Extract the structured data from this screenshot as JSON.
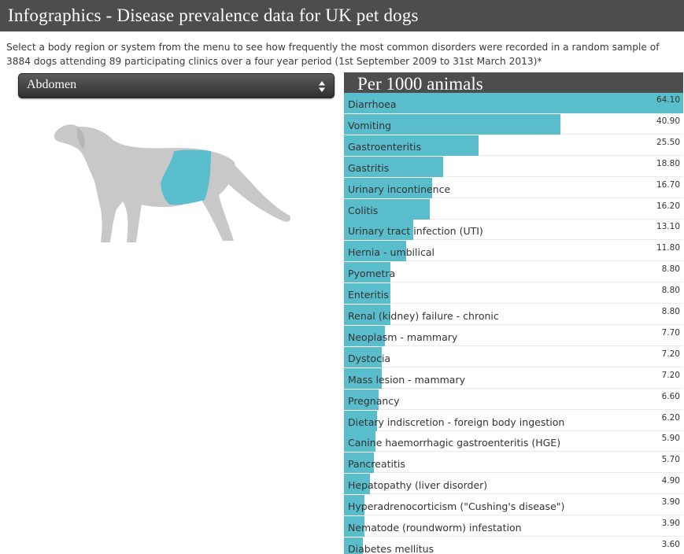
{
  "header": {
    "title": "Infographics - Disease prevalence data for UK pet dogs"
  },
  "intro": {
    "text": "Select a body region or system from the menu to see how frequently the most common disorders were recorded in a random sample of 3884 dogs attending 89 participating clinics over a four year period (1st September 2009 to 31st March 2013)*"
  },
  "region_select": {
    "value": "Abdomen"
  },
  "illustration": {
    "icon": "dog-silhouette-icon",
    "body_color": "#c8c8c8",
    "highlight_color": "#59bdcb"
  },
  "chart_header": {
    "title": "Per 1000 animals"
  },
  "colors": {
    "header_bg": "#4d4d4d",
    "bar": "#59bdcb"
  },
  "chart_data": {
    "type": "bar",
    "orientation": "horizontal",
    "max_value": 64.1,
    "categories": [
      "Diarrhoea",
      "Vomiting",
      "Gastroenteritis",
      "Gastritis",
      "Urinary incontinence",
      "Colitis",
      "Urinary tract infection (UTI)",
      "Hernia - umbilical",
      "Pyometra",
      "Enteritis",
      "Renal (kidney) failure - chronic",
      "Neoplasm - mammary",
      "Dystocia",
      "Mass lesion - mammary",
      "Pregnancy",
      "Dietary indiscretion - foreign body ingestion",
      "Canine haemorrhagic gastroenteritis (HGE)",
      "Pancreatitis",
      "Hepatopathy (liver disorder)",
      "Hyperadrenocorticism (\"Cushing's disease\")",
      "Nematode (roundworm) infestation",
      "Diabetes mellitus"
    ],
    "values": [
      64.1,
      40.9,
      25.5,
      18.8,
      16.7,
      16.2,
      13.1,
      11.8,
      8.8,
      8.8,
      8.8,
      7.7,
      7.2,
      7.2,
      6.6,
      6.2,
      5.9,
      5.7,
      4.9,
      3.9,
      3.9,
      3.6
    ],
    "value_labels": [
      "64.10",
      "40.90",
      "25.50",
      "18.80",
      "16.70",
      "16.20",
      "13.10",
      "11.80",
      "8.80",
      "8.80",
      "8.80",
      "7.70",
      "7.20",
      "7.20",
      "6.60",
      "6.20",
      "5.90",
      "5.70",
      "4.90",
      "3.90",
      "3.90",
      "3.60"
    ]
  }
}
